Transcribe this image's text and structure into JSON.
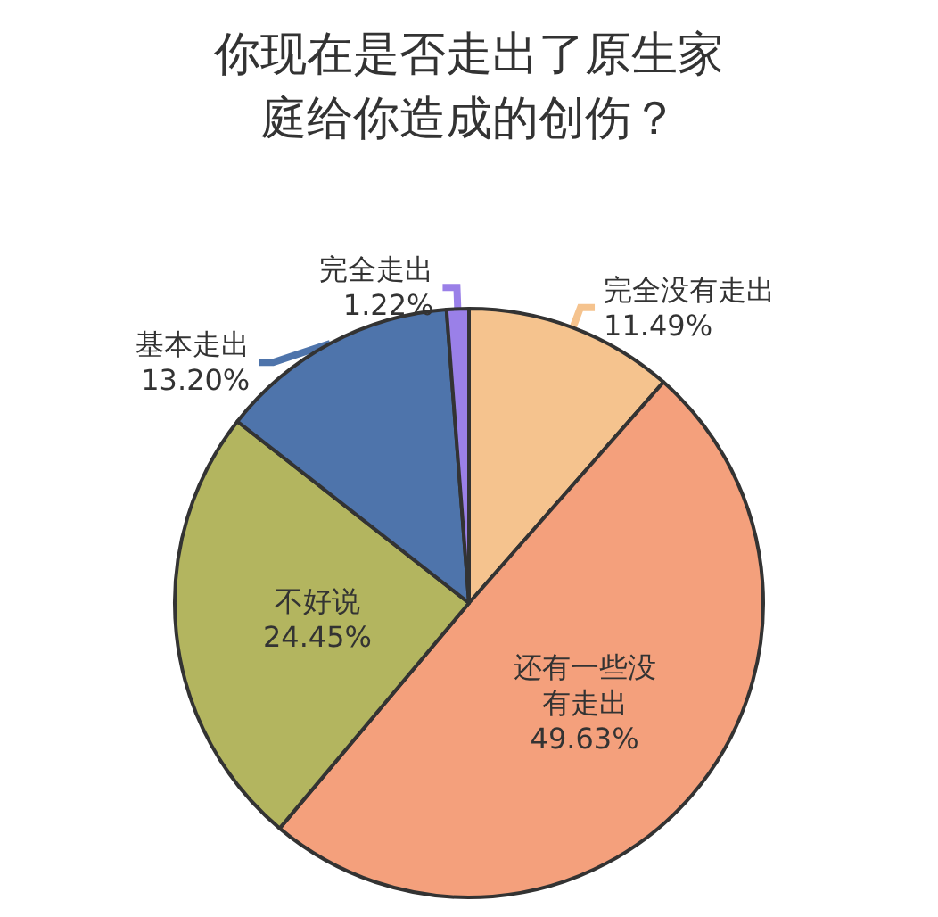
{
  "chart_data": {
    "type": "pie",
    "title": "你现在是否走出了原生家庭给你造成的创伤？",
    "categories": [
      "完全没有走出",
      "还有一些没有走出",
      "不好说",
      "基本走出",
      "完全走出"
    ],
    "values": [
      11.49,
      49.63,
      24.45,
      13.2,
      1.22
    ],
    "value_labels": [
      "11.49%",
      "49.63%",
      "24.45%",
      "13.20%",
      "1.22%"
    ],
    "colors": [
      "#f5c38e",
      "#f4a07c",
      "#b3b55f",
      "#4e74ab",
      "#9a80e8"
    ],
    "legend": false
  }
}
